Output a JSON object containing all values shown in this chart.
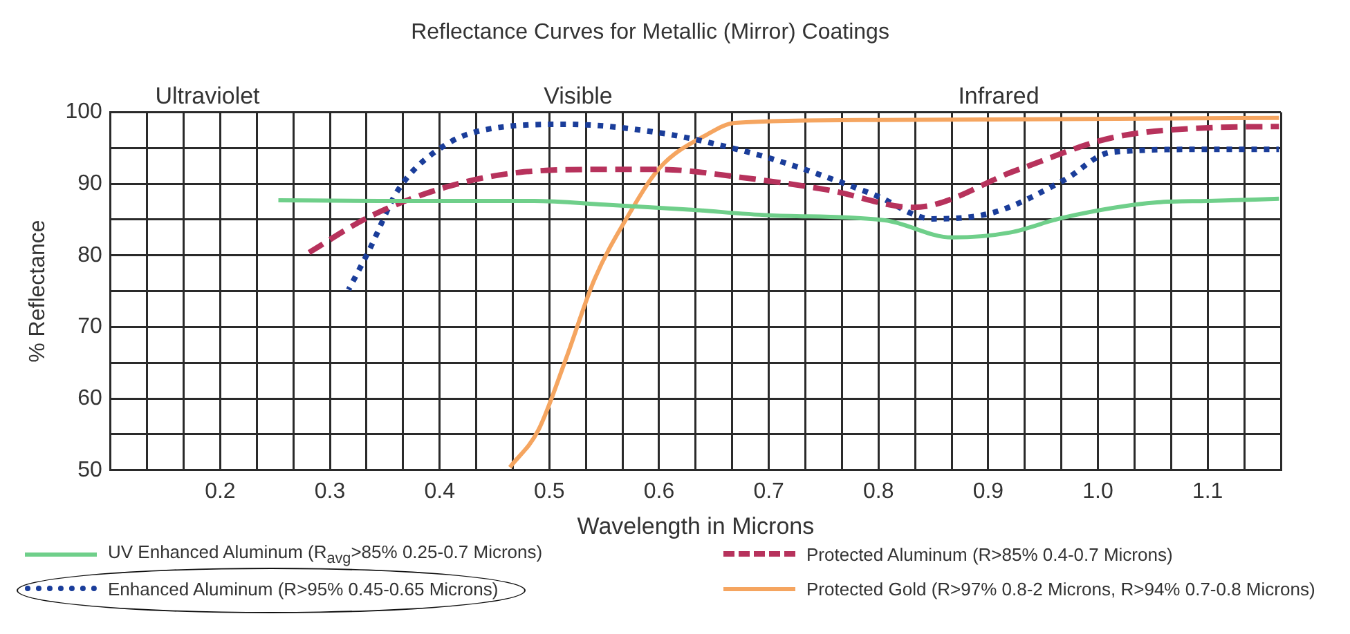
{
  "chart_data": {
    "type": "line",
    "title": "Reflectance Curves for Metallic (Mirror) Coatings",
    "xlabel": "Wavelength in Microns",
    "ylabel": "% Reflectance",
    "annotations": [
      "Ultraviolet",
      "Visible",
      "Infrared"
    ],
    "xlim": [
      0.1,
      1.1667
    ],
    "xticks": [
      {
        "value": 0.1,
        "label": null
      },
      {
        "value": 0.1333,
        "label": null
      },
      {
        "value": 0.1667,
        "label": null
      },
      0.2,
      {
        "value": 0.2333,
        "label": null
      },
      {
        "value": 0.2667,
        "label": null
      },
      0.3,
      {
        "value": 0.3333,
        "label": null
      },
      {
        "value": 0.3667,
        "label": null
      },
      0.4,
      {
        "value": 0.4333,
        "label": null
      },
      {
        "value": 0.4667,
        "label": null
      },
      0.5,
      {
        "value": 0.5333,
        "label": null
      },
      {
        "value": 0.5667,
        "label": null
      },
      0.6,
      {
        "value": 0.6333,
        "label": null
      },
      {
        "value": 0.6667,
        "label": null
      },
      0.7,
      {
        "value": 0.7333,
        "label": null
      },
      {
        "value": 0.7667,
        "label": null
      },
      0.8,
      {
        "value": 0.8333,
        "label": null
      },
      {
        "value": 0.8667,
        "label": null
      },
      0.9,
      {
        "value": 0.9333,
        "label": null
      },
      {
        "value": 0.9667,
        "label": null
      },
      {
        "value": 1,
        "label": "1.0"
      },
      {
        "value": 1.0333,
        "label": null
      },
      {
        "value": 1.0667,
        "label": null
      },
      1.1,
      {
        "value": 1.1333,
        "label": null
      },
      {
        "value": 1.1667,
        "label": null
      }
    ],
    "ylim": [
      50,
      100
    ],
    "yticks": [
      50,
      {
        "value": 55,
        "label": null
      },
      60,
      {
        "value": 65,
        "label": null
      },
      70,
      {
        "value": 75,
        "label": null
      },
      80,
      {
        "value": 85,
        "label": null
      },
      90,
      {
        "value": 95,
        "label": null
      },
      100
    ],
    "grid": true,
    "legend": "bottom",
    "marker": "none",
    "series": [
      {
        "name": "UV Enhanced Aluminum (R$_{avg}$>85% 0.25-0.7 Microns)",
        "color": "#6fcf8a",
        "line_style": "solid",
        "x": [
          0.253,
          0.35,
          0.486,
          0.55,
          0.627,
          0.7,
          0.806,
          0.867,
          0.92,
          0.969,
          1.054,
          1.1,
          1.165
        ],
        "values": [
          87.7,
          87.6,
          87.6,
          87.1,
          86.4,
          85.6,
          84.9,
          82.5,
          83.2,
          85.3,
          87.4,
          87.6,
          87.9
        ]
      },
      {
        "name": "Protected Aluminum (R>85% 0.4-0.7 Microns)",
        "color": "#b7325c",
        "line_style": "dashed",
        "x": [
          0.281,
          0.336,
          0.405,
          0.473,
          0.55,
          0.601,
          0.674,
          0.755,
          0.832,
          0.926,
          1.012,
          1.097,
          1.165
        ],
        "values": [
          80.4,
          85.4,
          89.5,
          91.6,
          92.0,
          92.0,
          90.9,
          89.1,
          86.7,
          91.9,
          96.4,
          97.8,
          98.0
        ]
      },
      {
        "name": "Enhanced Aluminum (R>95% 0.45-0.65 Microns)",
        "color": "#1a3d9a",
        "line_style": "dotted",
        "x": [
          0.317,
          0.336,
          0.362,
          0.405,
          0.451,
          0.515,
          0.601,
          0.674,
          0.713,
          0.797,
          0.849,
          0.905,
          0.969,
          1.012,
          1.097,
          1.165
        ],
        "values": [
          75.2,
          80.8,
          89.1,
          95.4,
          97.8,
          98.3,
          97.1,
          94.7,
          93.0,
          88.4,
          85.1,
          86.0,
          90.5,
          94.4,
          94.8,
          94.8
        ]
      },
      {
        "name": "Protected Gold (R>97% 0.8-2 Microns, R>94% 0.7-0.8 Microns)",
        "color": "#f5a560",
        "line_style": "solid",
        "x": [
          0.464,
          0.49,
          0.515,
          0.541,
          0.572,
          0.601,
          0.644,
          0.669,
          0.797,
          1.165
        ],
        "values": [
          50.4,
          55.6,
          65.5,
          76.6,
          85.6,
          92.3,
          96.9,
          98.5,
          98.9,
          99.2
        ]
      }
    ]
  }
}
